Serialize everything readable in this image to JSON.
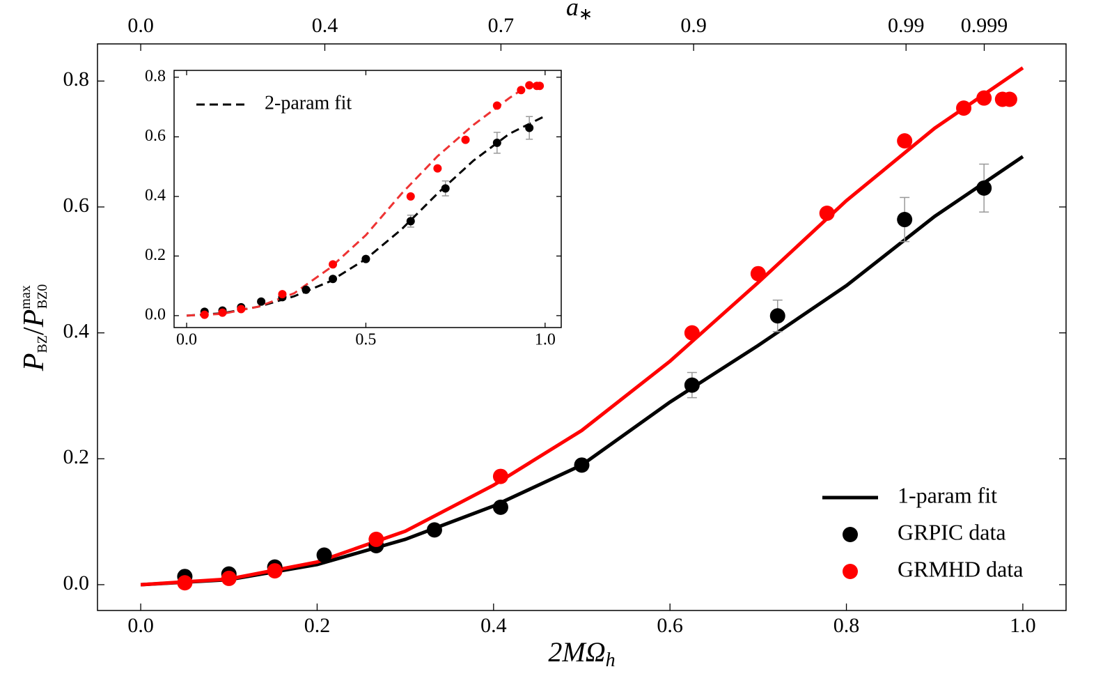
{
  "chart_data": [
    {
      "type": "scatter",
      "xlabel": [
        "2MΩ",
        "h"
      ],
      "ylabel": [
        "P",
        "BZ",
        "/",
        "P",
        "max",
        "BZ0"
      ],
      "x2label": [
        "a",
        "∗"
      ],
      "xlim": [
        -0.049,
        1.049
      ],
      "ylim": [
        -0.041,
        0.859
      ],
      "xticks": [
        {
          "value": 0.0,
          "label": "0.0"
        },
        0.2,
        0.4,
        0.6,
        0.8,
        {
          "value": 1.0,
          "label": "1.0"
        }
      ],
      "yticks": [
        {
          "value": 0.0,
          "label": "0.0"
        },
        0.2,
        0.4,
        0.6,
        0.8
      ],
      "x2ticks": [
        {
          "value": 0.0,
          "label": "0.0"
        },
        0.4,
        0.7,
        0.9,
        0.99,
        0.999
      ],
      "legend": "lower right",
      "series": [
        {
          "name": "1-param fit",
          "type": "line",
          "color": "#000000",
          "x": [
            0,
            0.1,
            0.2,
            0.3,
            0.4,
            0.5,
            0.6,
            0.7,
            0.8,
            0.9,
            1.0
          ],
          "values": [
            0,
            0.008,
            0.032,
            0.072,
            0.125,
            0.19,
            0.29,
            0.38,
            0.475,
            0.585,
            0.68
          ]
        },
        {
          "type": "line",
          "color": "#ff0000",
          "x": [
            0,
            0.1,
            0.2,
            0.3,
            0.4,
            0.5,
            0.6,
            0.7,
            0.8,
            0.9,
            1.0
          ],
          "values": [
            0,
            0.009,
            0.036,
            0.085,
            0.158,
            0.245,
            0.355,
            0.48,
            0.61,
            0.725,
            0.821
          ]
        },
        {
          "name": "GRPIC data",
          "type": "scatter",
          "color": "#000000",
          "x": [
            0.05,
            0.1,
            0.152,
            0.208,
            0.267,
            0.333,
            0.408,
            0.5,
            0.625,
            0.722,
            0.866,
            0.956
          ],
          "values": [
            0.013,
            0.017,
            0.028,
            0.047,
            0.062,
            0.087,
            0.123,
            0.19,
            0.317,
            0.427,
            0.58,
            0.63
          ],
          "errors": [
            null,
            null,
            null,
            null,
            null,
            null,
            null,
            null,
            0.02,
            0.025,
            0.035,
            0.038
          ]
        },
        {
          "name": "GRMHD data",
          "type": "scatter",
          "color": "#ff0000",
          "x": [
            0.05,
            0.1,
            0.152,
            0.267,
            0.408,
            0.625,
            0.7,
            0.778,
            0.866,
            0.933,
            0.956,
            0.977,
            0.985
          ],
          "values": [
            0.003,
            0.01,
            0.022,
            0.072,
            0.172,
            0.4,
            0.494,
            0.59,
            0.705,
            0.757,
            0.773,
            0.771,
            0.771
          ]
        }
      ]
    },
    {
      "type": "scatter",
      "xlim": [
        -0.035,
        1.045
      ],
      "ylim": [
        -0.04,
        0.823
      ],
      "xticks": [
        {
          "value": 0.0,
          "label": "0.0"
        },
        0.5,
        {
          "value": 1.0,
          "label": "1.0"
        }
      ],
      "yticks": [
        {
          "value": 0.0,
          "label": "0.0"
        },
        0.2,
        0.4,
        0.6,
        0.8
      ],
      "legend": "upper left",
      "series": [
        {
          "name": "2-param fit",
          "type": "line",
          "dashed": true,
          "color": "#000000",
          "x": [
            0,
            0.1,
            0.2,
            0.3,
            0.4,
            0.5,
            0.6,
            0.7,
            0.8,
            0.9,
            1.0
          ],
          "values": [
            0,
            0.008,
            0.03,
            0.065,
            0.115,
            0.19,
            0.29,
            0.41,
            0.52,
            0.61,
            0.67
          ]
        },
        {
          "type": "line",
          "dashed": true,
          "color": "#ee3333",
          "x": [
            0,
            0.1,
            0.2,
            0.3,
            0.4,
            0.5,
            0.6,
            0.7,
            0.8,
            0.9,
            0.95,
            0.98
          ],
          "values": [
            0,
            0.006,
            0.03,
            0.075,
            0.16,
            0.27,
            0.41,
            0.535,
            0.64,
            0.73,
            0.77,
            0.78
          ]
        },
        {
          "type": "scatter",
          "color": "#000000",
          "x": [
            0.05,
            0.1,
            0.152,
            0.208,
            0.267,
            0.333,
            0.408,
            0.5,
            0.625,
            0.722,
            0.866,
            0.956
          ],
          "values": [
            0.013,
            0.017,
            0.028,
            0.047,
            0.062,
            0.087,
            0.123,
            0.19,
            0.317,
            0.427,
            0.58,
            0.63
          ],
          "errors": [
            null,
            null,
            null,
            null,
            null,
            null,
            null,
            null,
            0.02,
            0.025,
            0.035,
            0.038
          ]
        },
        {
          "type": "scatter",
          "color": "#ff0000",
          "x": [
            0.05,
            0.1,
            0.152,
            0.267,
            0.408,
            0.625,
            0.7,
            0.778,
            0.866,
            0.933,
            0.956,
            0.977,
            0.985
          ],
          "values": [
            0.003,
            0.01,
            0.022,
            0.072,
            0.172,
            0.4,
            0.494,
            0.59,
            0.705,
            0.757,
            0.773,
            0.771,
            0.771
          ]
        }
      ]
    }
  ]
}
